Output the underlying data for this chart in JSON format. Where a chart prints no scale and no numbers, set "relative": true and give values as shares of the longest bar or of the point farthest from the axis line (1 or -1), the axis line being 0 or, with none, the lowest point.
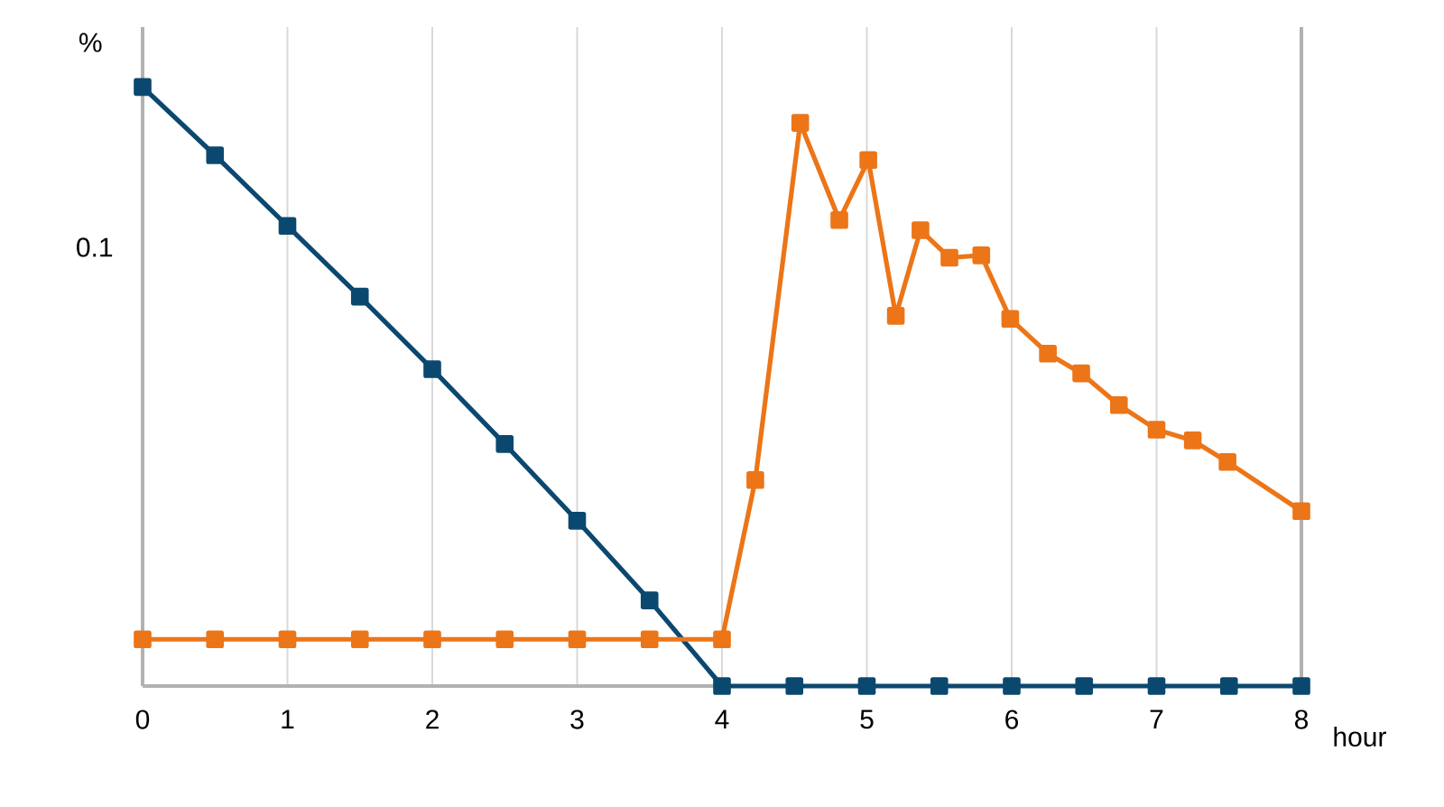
{
  "chart_data": {
    "type": "line",
    "relative": true,
    "ylabel": "%",
    "xlabel": "hour",
    "xlim": [
      0,
      8
    ],
    "xticks": [
      0,
      1,
      2,
      3,
      4,
      5,
      6,
      7,
      8
    ],
    "grid": "x",
    "marker": "square",
    "line_style": "solid",
    "annotations": [
      "0.1"
    ],
    "series": [
      {
        "color": "#0b4870",
        "x": [
          0,
          0.5,
          1,
          1.5,
          2,
          2.5,
          3,
          3.5,
          4,
          4.5,
          5,
          5.5,
          6,
          6.5,
          7,
          7.5,
          8
        ],
        "values": [
          1,
          0.886,
          0.768,
          0.65,
          0.529,
          0.404,
          0.276,
          0.143,
          0,
          0,
          0,
          0,
          0,
          0,
          0,
          0,
          0
        ]
      },
      {
        "color": "#ec7518",
        "x": [
          0,
          0.5,
          1,
          1.5,
          2,
          2.5,
          3,
          3.5,
          4,
          4.23,
          4.54,
          4.81,
          5.01,
          5.2,
          5.37,
          5.57,
          5.79,
          5.99,
          6.25,
          6.48,
          6.74,
          7,
          7.25,
          7.49,
          8
        ],
        "values": [
          0.078,
          0.078,
          0.078,
          0.078,
          0.078,
          0.078,
          0.078,
          0.078,
          0.078,
          0.344,
          0.94,
          0.778,
          0.878,
          0.618,
          0.761,
          0.715,
          0.719,
          0.613,
          0.555,
          0.522,
          0.469,
          0.428,
          0.41,
          0.374,
          0.292
        ]
      }
    ]
  }
}
